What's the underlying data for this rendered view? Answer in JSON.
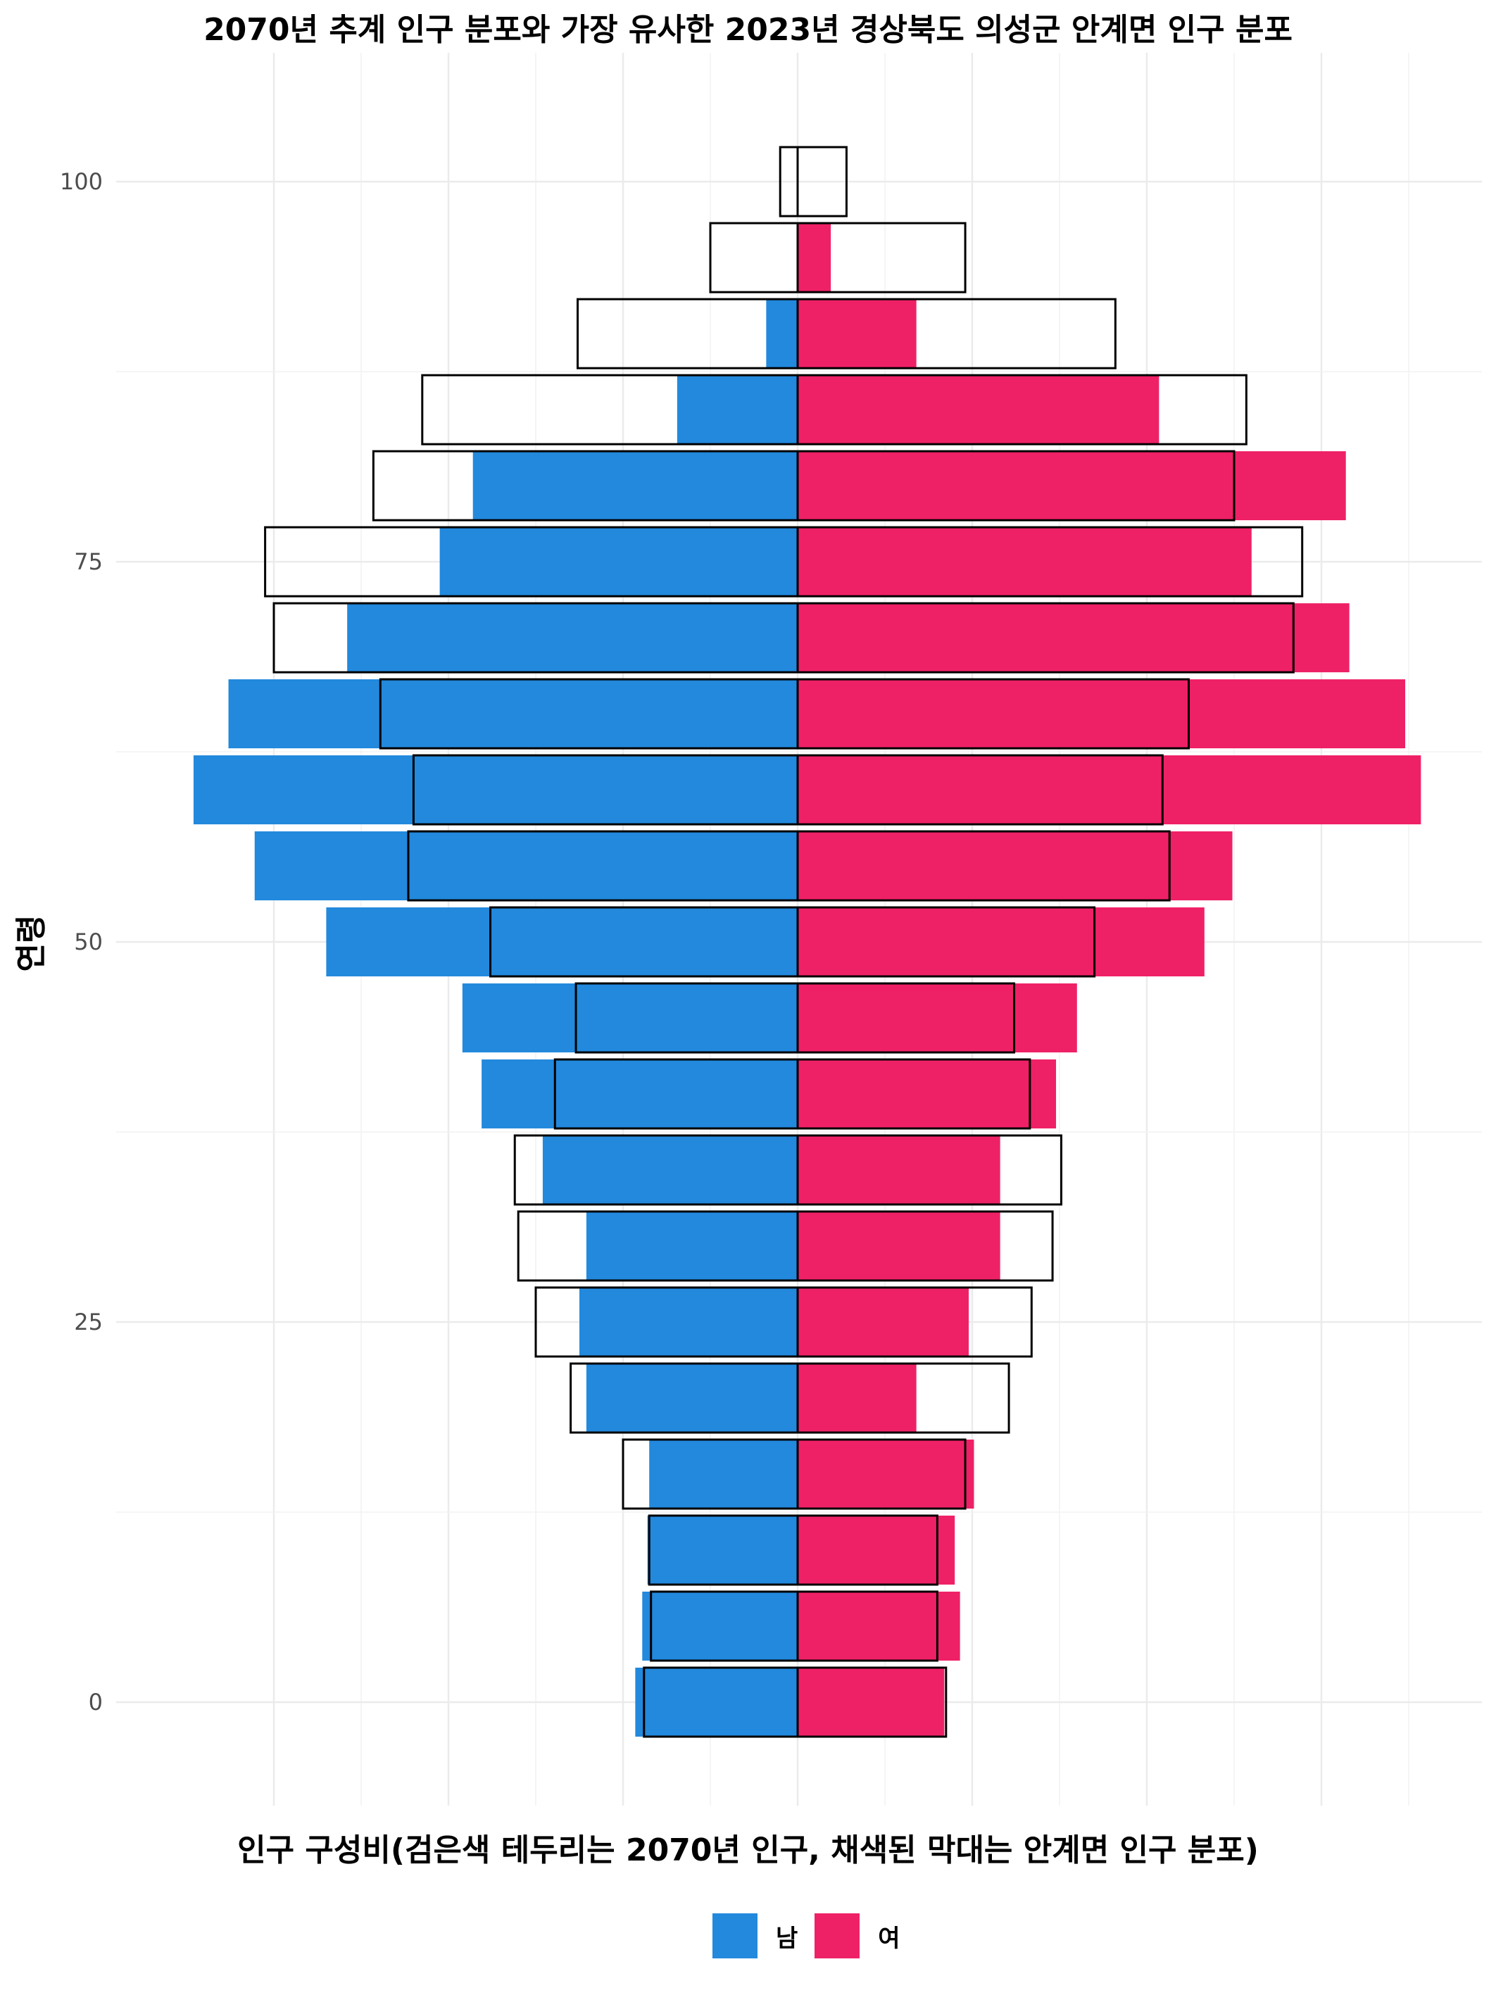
{
  "title": "2070년 추계 인구 분포와 가장 유사한 2023년 경상북도 의성군 안계면 인구 분포",
  "chart_data": {
    "type": "bar",
    "orientation": "horizontal-population-pyramid",
    "title": "2070년 추계 인구 분포와 가장 유사한 2023년 경상북도 의성군 안계면 인구 분포",
    "xlabel": "인구 구성비(검은색 테두리는 2070년 인구, 채색된 막대는 안계면 인구 분포)",
    "ylabel": "연령",
    "y_ticks": [
      0,
      25,
      50,
      75,
      100
    ],
    "x_ticks_labeled": false,
    "xlim": [
      -3.45,
      3.9
    ],
    "ylim": [
      -6,
      106
    ],
    "grid": true,
    "legend": {
      "position": "bottom",
      "entries": [
        {
          "name": "남",
          "color": "#2289dd"
        },
        {
          "name": "여",
          "color": "#ef2166"
        }
      ]
    },
    "colors": {
      "male": "#2289dd",
      "female": "#ef2166",
      "outline": "#000000"
    },
    "age_groups": [
      0,
      5,
      10,
      15,
      20,
      25,
      30,
      35,
      40,
      45,
      50,
      55,
      60,
      65,
      70,
      75,
      80,
      85,
      90,
      95,
      100
    ],
    "series": [
      {
        "name": "남",
        "type": "filled",
        "values": [
          0.93,
          0.89,
          0.86,
          0.85,
          1.21,
          1.25,
          1.21,
          1.46,
          1.81,
          1.92,
          2.7,
          3.11,
          3.46,
          3.26,
          2.58,
          2.05,
          1.86,
          0.69,
          0.18,
          0.0,
          0.0
        ]
      },
      {
        "name": "여",
        "type": "filled",
        "values": [
          0.84,
          0.93,
          0.9,
          1.01,
          0.68,
          0.98,
          1.16,
          1.16,
          1.48,
          1.6,
          2.33,
          2.49,
          3.57,
          3.48,
          3.16,
          2.6,
          3.14,
          2.07,
          0.68,
          0.19,
          0.0
        ]
      },
      {
        "name": "2070 남",
        "type": "outline",
        "values": [
          0.88,
          0.84,
          0.85,
          1.0,
          1.3,
          1.5,
          1.6,
          1.62,
          1.39,
          1.27,
          1.76,
          2.23,
          2.2,
          2.39,
          3.0,
          3.05,
          2.43,
          2.15,
          1.26,
          0.5,
          0.1
        ]
      },
      {
        "name": "2070 여",
        "type": "outline",
        "values": [
          0.85,
          0.8,
          0.8,
          0.96,
          1.21,
          1.34,
          1.46,
          1.51,
          1.33,
          1.24,
          1.7,
          2.13,
          2.09,
          2.24,
          2.84,
          2.89,
          2.5,
          2.57,
          1.82,
          0.96,
          0.28
        ]
      }
    ]
  }
}
